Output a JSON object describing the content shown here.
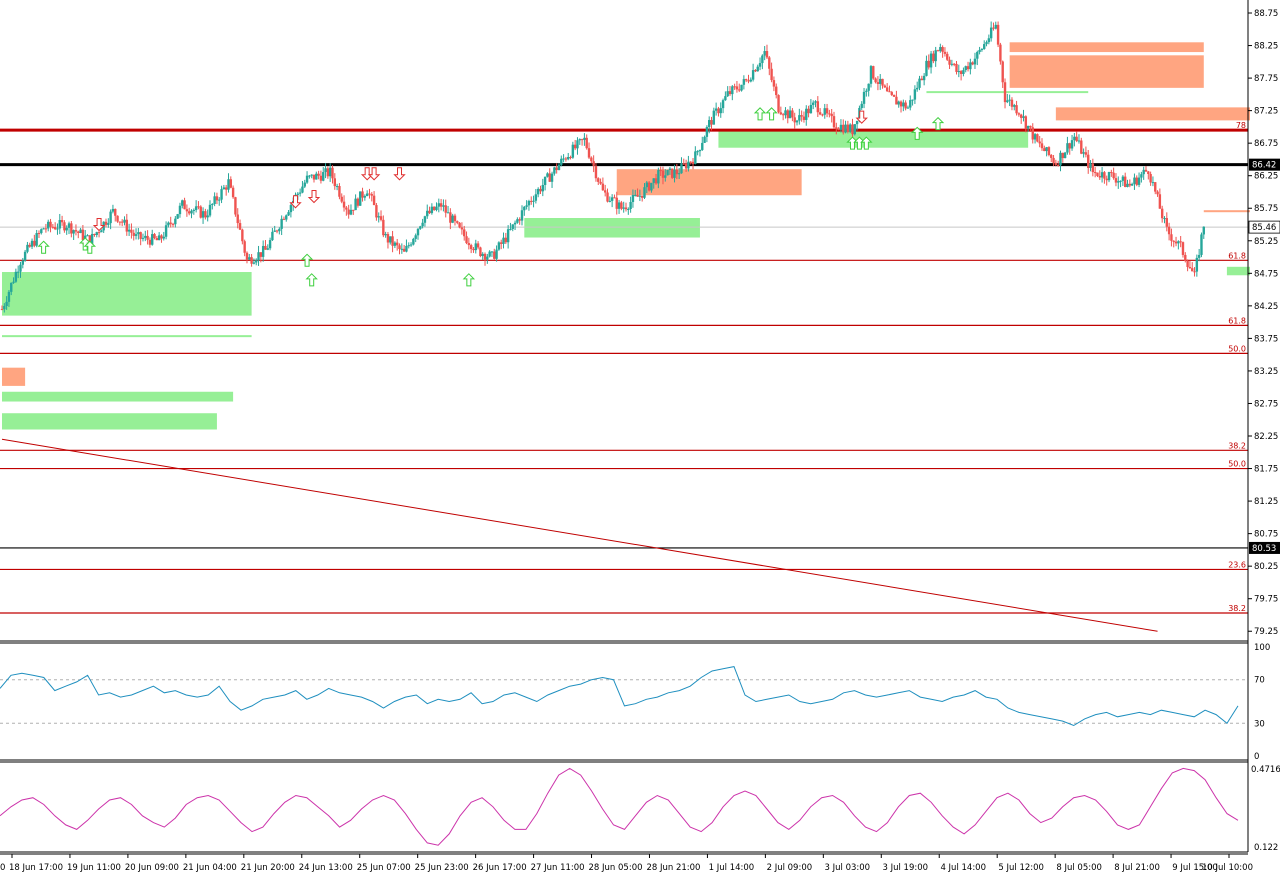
{
  "chart_data": {
    "type": "candlestick",
    "price_axis": {
      "ylim": [
        79.1,
        88.95
      ],
      "ticks": [
        79.25,
        79.75,
        80.25,
        80.75,
        81.25,
        81.75,
        82.25,
        82.75,
        83.25,
        83.75,
        84.25,
        84.75,
        85.25,
        85.75,
        86.25,
        86.75,
        87.25,
        87.75,
        88.25,
        88.75
      ],
      "tick_labels": [
        "79.25",
        "79.75",
        "80.25",
        "80.75",
        "81.25",
        "81.75",
        "82.25",
        "82.75",
        "83.25",
        "83.75",
        "84.25",
        "84.75",
        "85.25",
        "85.75",
        "86.25",
        "86.75",
        "87.25",
        "87.75",
        "88.25",
        "88.75"
      ],
      "current_price_label": "85.46",
      "line_price_labels": [
        {
          "price": 86.42,
          "text": "86.42"
        },
        {
          "price": 80.53,
          "text": "80.53"
        }
      ]
    },
    "time_axis": {
      "labels": [
        "18 Jun 17:00",
        "19 Jun 11:00",
        "20 Jun 09:00",
        "21 Jun 04:00",
        "21 Jun 20:00",
        "24 Jun 13:00",
        "25 Jun 07:00",
        "25 Jun 23:00",
        "26 Jun 17:00",
        "27 Jun 11:00",
        "28 Jun 05:00",
        "28 Jun 21:00",
        "1 Jul 14:00",
        "2 Jul 09:00",
        "3 Jul 03:00",
        "3 Jul 19:00",
        "4 Jul 14:00",
        "5 Jul 12:00",
        "8 Jul 05:00",
        "8 Jul 21:00",
        "9 Jul 15:00",
        "10 Jul 10:00"
      ],
      "left_fragment": "0"
    },
    "price_path": [
      {
        "bar": 0,
        "price": 84.2
      },
      {
        "bar": 8,
        "price": 84.95
      },
      {
        "bar": 18,
        "price": 85.45
      },
      {
        "bar": 28,
        "price": 85.5
      },
      {
        "bar": 38,
        "price": 85.25
      },
      {
        "bar": 48,
        "price": 85.7
      },
      {
        "bar": 58,
        "price": 85.3
      },
      {
        "bar": 68,
        "price": 85.25
      },
      {
        "bar": 78,
        "price": 85.8
      },
      {
        "bar": 88,
        "price": 85.65
      },
      {
        "bar": 98,
        "price": 86.15
      },
      {
        "bar": 106,
        "price": 84.95
      },
      {
        "bar": 114,
        "price": 85.1
      },
      {
        "bar": 122,
        "price": 85.65
      },
      {
        "bar": 132,
        "price": 86.2
      },
      {
        "bar": 142,
        "price": 86.3
      },
      {
        "bar": 150,
        "price": 85.7
      },
      {
        "bar": 158,
        "price": 86.05
      },
      {
        "bar": 166,
        "price": 85.3
      },
      {
        "bar": 174,
        "price": 85.05
      },
      {
        "bar": 182,
        "price": 85.6
      },
      {
        "bar": 190,
        "price": 85.8
      },
      {
        "bar": 198,
        "price": 85.4
      },
      {
        "bar": 206,
        "price": 85.1
      },
      {
        "bar": 212,
        "price": 85.0
      },
      {
        "bar": 220,
        "price": 85.4
      },
      {
        "bar": 228,
        "price": 85.85
      },
      {
        "bar": 236,
        "price": 86.2
      },
      {
        "bar": 244,
        "price": 86.55
      },
      {
        "bar": 252,
        "price": 86.8
      },
      {
        "bar": 260,
        "price": 86.0
      },
      {
        "bar": 268,
        "price": 85.75
      },
      {
        "bar": 276,
        "price": 85.95
      },
      {
        "bar": 284,
        "price": 86.25
      },
      {
        "bar": 292,
        "price": 86.3
      },
      {
        "bar": 300,
        "price": 86.55
      },
      {
        "bar": 306,
        "price": 87.05
      },
      {
        "bar": 314,
        "price": 87.5
      },
      {
        "bar": 322,
        "price": 87.7
      },
      {
        "bar": 330,
        "price": 88.15
      },
      {
        "bar": 336,
        "price": 87.3
      },
      {
        "bar": 344,
        "price": 87.1
      },
      {
        "bar": 352,
        "price": 87.35
      },
      {
        "bar": 360,
        "price": 87.05
      },
      {
        "bar": 368,
        "price": 86.95
      },
      {
        "bar": 376,
        "price": 87.85
      },
      {
        "bar": 384,
        "price": 87.45
      },
      {
        "bar": 392,
        "price": 87.3
      },
      {
        "bar": 400,
        "price": 87.95
      },
      {
        "bar": 406,
        "price": 88.25
      },
      {
        "bar": 414,
        "price": 87.8
      },
      {
        "bar": 422,
        "price": 88.1
      },
      {
        "bar": 430,
        "price": 88.55
      },
      {
        "bar": 434,
        "price": 87.45
      },
      {
        "bar": 440,
        "price": 87.25
      },
      {
        "bar": 448,
        "price": 86.75
      },
      {
        "bar": 456,
        "price": 86.45
      },
      {
        "bar": 464,
        "price": 86.85
      },
      {
        "bar": 472,
        "price": 86.3
      },
      {
        "bar": 480,
        "price": 86.25
      },
      {
        "bar": 488,
        "price": 86.1
      },
      {
        "bar": 496,
        "price": 86.35
      },
      {
        "bar": 504,
        "price": 85.4
      },
      {
        "bar": 510,
        "price": 85.15
      },
      {
        "bar": 516,
        "price": 84.7
      },
      {
        "bar": 520,
        "price": 85.5
      }
    ],
    "horizontal_lines": [
      {
        "price": 86.95,
        "color": "#c00000",
        "thick": true
      },
      {
        "price": 86.42,
        "color": "#000000",
        "thick": true
      },
      {
        "price": 84.95,
        "color": "#c00000",
        "thick": false
      },
      {
        "price": 83.95,
        "color": "#c00000",
        "thick": false
      },
      {
        "price": 83.52,
        "color": "#c00000",
        "thick": false
      },
      {
        "price": 82.03,
        "color": "#c00000",
        "thick": false
      },
      {
        "price": 81.75,
        "color": "#c00000",
        "thick": false
      },
      {
        "price": 80.53,
        "color": "#000000",
        "thick": false
      },
      {
        "price": 80.2,
        "color": "#c00000",
        "thick": false
      },
      {
        "price": 79.53,
        "color": "#c00000",
        "thick": false
      }
    ],
    "level_labels": [
      {
        "price": 86.95,
        "text": "78"
      },
      {
        "price": 84.95,
        "text": "61.8"
      },
      {
        "price": 83.95,
        "text": "61.8"
      },
      {
        "price": 83.52,
        "text": "50.0"
      },
      {
        "price": 82.03,
        "text": "38.2"
      },
      {
        "price": 81.75,
        "text": "50.0"
      },
      {
        "price": 80.2,
        "text": "23.6"
      },
      {
        "price": 79.53,
        "text": "38.2"
      }
    ],
    "trendline": {
      "from": {
        "bar": 0,
        "price": 82.2
      },
      "to": {
        "bar": 500,
        "price": 79.25
      }
    },
    "supply_zones": [
      {
        "from_bar": 436,
        "to_bar": 520,
        "top": 88.3,
        "bottom": 88.15
      },
      {
        "from_bar": 436,
        "to_bar": 520,
        "top": 88.1,
        "bottom": 87.6
      },
      {
        "from_bar": 456,
        "to_bar": 540,
        "top": 87.3,
        "bottom": 87.1
      },
      {
        "from_bar": 266,
        "to_bar": 346,
        "top": 86.35,
        "bottom": 85.95
      },
      {
        "from_bar": 0,
        "to_bar": 10,
        "top": 83.3,
        "bottom": 83.02
      },
      {
        "from_bar": 520,
        "to_bar": 540,
        "top": 85.72,
        "bottom": 85.7
      }
    ],
    "demand_zones": [
      {
        "from_bar": 0,
        "to_bar": 108,
        "top": 84.77,
        "bottom": 84.1
      },
      {
        "from_bar": 0,
        "to_bar": 108,
        "top": 83.8,
        "bottom": 83.78
      },
      {
        "from_bar": 0,
        "to_bar": 100,
        "top": 82.93,
        "bottom": 82.78
      },
      {
        "from_bar": 0,
        "to_bar": 93,
        "top": 82.6,
        "bottom": 82.35
      },
      {
        "from_bar": 226,
        "to_bar": 302,
        "top": 85.6,
        "bottom": 85.3
      },
      {
        "from_bar": 310,
        "to_bar": 444,
        "top": 86.93,
        "bottom": 86.68
      },
      {
        "from_bar": 400,
        "to_bar": 470,
        "top": 87.55,
        "bottom": 87.53
      },
      {
        "from_bar": 530,
        "to_bar": 540,
        "top": 84.85,
        "bottom": 84.72
      }
    ],
    "down_arrows": [
      {
        "bar": 42,
        "price": 85.5
      },
      {
        "bar": 127,
        "price": 85.85
      },
      {
        "bar": 135,
        "price": 85.93
      },
      {
        "bar": 158,
        "price": 86.28
      },
      {
        "bar": 161,
        "price": 86.28
      },
      {
        "bar": 172,
        "price": 86.28
      },
      {
        "bar": 372,
        "price": 87.15
      }
    ],
    "up_arrows": [
      {
        "bar": 18,
        "price": 85.15
      },
      {
        "bar": 36,
        "price": 85.2
      },
      {
        "bar": 38,
        "price": 85.15
      },
      {
        "bar": 132,
        "price": 84.95
      },
      {
        "bar": 134,
        "price": 84.65
      },
      {
        "bar": 202,
        "price": 84.65
      },
      {
        "bar": 328,
        "price": 87.2
      },
      {
        "bar": 333,
        "price": 87.2
      },
      {
        "bar": 368,
        "price": 86.75
      },
      {
        "bar": 371,
        "price": 86.75
      },
      {
        "bar": 374,
        "price": 86.75
      },
      {
        "bar": 396,
        "price": 86.9
      },
      {
        "bar": 405,
        "price": 87.05
      }
    ],
    "rsi": {
      "ylim": [
        0,
        100
      ],
      "ticks": [
        0,
        30,
        70,
        100
      ],
      "tick_labels": [
        "0",
        "30",
        "70",
        "100"
      ],
      "values": [
        62,
        74,
        76,
        74,
        72,
        60,
        64,
        68,
        74,
        56,
        58,
        54,
        56,
        60,
        64,
        58,
        60,
        56,
        54,
        56,
        64,
        50,
        42,
        46,
        52,
        54,
        56,
        60,
        52,
        56,
        62,
        58,
        56,
        54,
        50,
        44,
        50,
        54,
        56,
        48,
        52,
        50,
        52,
        58,
        48,
        50,
        56,
        58,
        54,
        50,
        56,
        60,
        64,
        66,
        70,
        72,
        70,
        46,
        48,
        52,
        54,
        58,
        60,
        64,
        72,
        78,
        80,
        82,
        56,
        50,
        52,
        54,
        56,
        50,
        48,
        50,
        52,
        58,
        60,
        56,
        54,
        56,
        58,
        60,
        54,
        52,
        50,
        54,
        56,
        60,
        54,
        52,
        44,
        40,
        38,
        36,
        34,
        32,
        28,
        34,
        38,
        40,
        36,
        38,
        40,
        38,
        42,
        40,
        38,
        36,
        42,
        38,
        30,
        46
      ]
    },
    "oscillator": {
      "ylim": [
        0.122,
        0.4716
      ],
      "tick_labels": [
        "0.4716",
        "0.122"
      ],
      "values": [
        0.26,
        0.3,
        0.33,
        0.34,
        0.31,
        0.26,
        0.22,
        0.2,
        0.24,
        0.29,
        0.33,
        0.34,
        0.31,
        0.26,
        0.23,
        0.21,
        0.25,
        0.31,
        0.34,
        0.35,
        0.33,
        0.28,
        0.23,
        0.19,
        0.21,
        0.27,
        0.32,
        0.35,
        0.34,
        0.3,
        0.26,
        0.21,
        0.24,
        0.29,
        0.33,
        0.35,
        0.33,
        0.27,
        0.2,
        0.14,
        0.13,
        0.18,
        0.26,
        0.32,
        0.34,
        0.3,
        0.24,
        0.2,
        0.2,
        0.27,
        0.36,
        0.44,
        0.47,
        0.44,
        0.37,
        0.29,
        0.22,
        0.2,
        0.26,
        0.32,
        0.35,
        0.33,
        0.27,
        0.21,
        0.19,
        0.23,
        0.3,
        0.35,
        0.37,
        0.35,
        0.29,
        0.23,
        0.2,
        0.24,
        0.3,
        0.34,
        0.35,
        0.32,
        0.26,
        0.21,
        0.19,
        0.23,
        0.3,
        0.35,
        0.36,
        0.32,
        0.26,
        0.21,
        0.18,
        0.22,
        0.28,
        0.34,
        0.36,
        0.33,
        0.27,
        0.23,
        0.25,
        0.3,
        0.34,
        0.35,
        0.33,
        0.28,
        0.22,
        0.2,
        0.22,
        0.3,
        0.38,
        0.45,
        0.47,
        0.46,
        0.42,
        0.34,
        0.27,
        0.24
      ]
    }
  },
  "colors": {
    "bull": "#26a69a",
    "bear": "#ef5350",
    "demand": "#90ee90",
    "supply": "#ffa07a",
    "level_line": "#c00000",
    "rsi_line": "#1f8fbf",
    "osc_line": "#cc33aa",
    "axis": "#000000",
    "grid_dash": "#b0b0b0"
  }
}
